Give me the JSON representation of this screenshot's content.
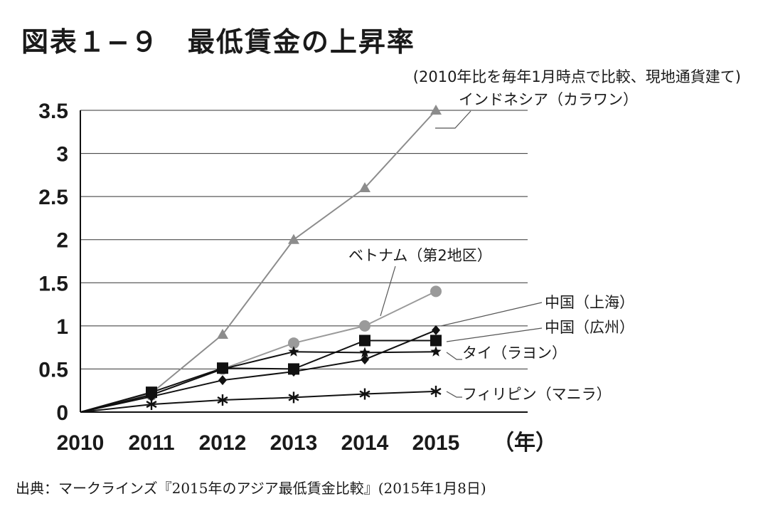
{
  "title": "図表１−９　最低賃金の上昇率",
  "note": "(2010年比を毎年1月時点で比較、現地通貨建て)",
  "source": "出典：マークラインズ『2015年のアジア最低賃金比較』(2015年1月8日)",
  "chart_data": {
    "type": "line",
    "x": [
      "2010",
      "2011",
      "2012",
      "2013",
      "2014",
      "2015"
    ],
    "x_unit": "（年）",
    "y_ticks": [
      "0",
      "0.5",
      "1",
      "1.5",
      "2",
      "2.5",
      "3",
      "3.5"
    ],
    "ylim": [
      0,
      3.5
    ],
    "grid": "horizontal",
    "series": [
      {
        "name": "インドネシア（カラワン）",
        "marker": "triangle",
        "color": "#8c8c8c",
        "values": [
          0,
          0.22,
          0.9,
          2.0,
          2.6,
          3.5
        ]
      },
      {
        "name": "ベトナム（第2地区）",
        "marker": "circle",
        "color": "#9a9a9a",
        "values": [
          0,
          0.2,
          0.5,
          0.8,
          1.0,
          1.4
        ]
      },
      {
        "name": "中国（上海）",
        "marker": "diamond",
        "color": "#111111",
        "values": [
          0,
          0.18,
          0.37,
          0.47,
          0.61,
          0.95
        ]
      },
      {
        "name": "中国（広州）",
        "marker": "square",
        "color": "#111111",
        "values": [
          0,
          0.23,
          0.51,
          0.5,
          0.83,
          0.83
        ]
      },
      {
        "name": "タイ（ラヨン）",
        "marker": "star",
        "color": "#111111",
        "values": [
          0,
          0.2,
          0.5,
          0.7,
          0.69,
          0.7
        ]
      },
      {
        "name": "フィリピン（マニラ）",
        "marker": "asterisk",
        "color": "#111111",
        "values": [
          0,
          0.09,
          0.14,
          0.17,
          0.21,
          0.24
        ]
      }
    ]
  }
}
